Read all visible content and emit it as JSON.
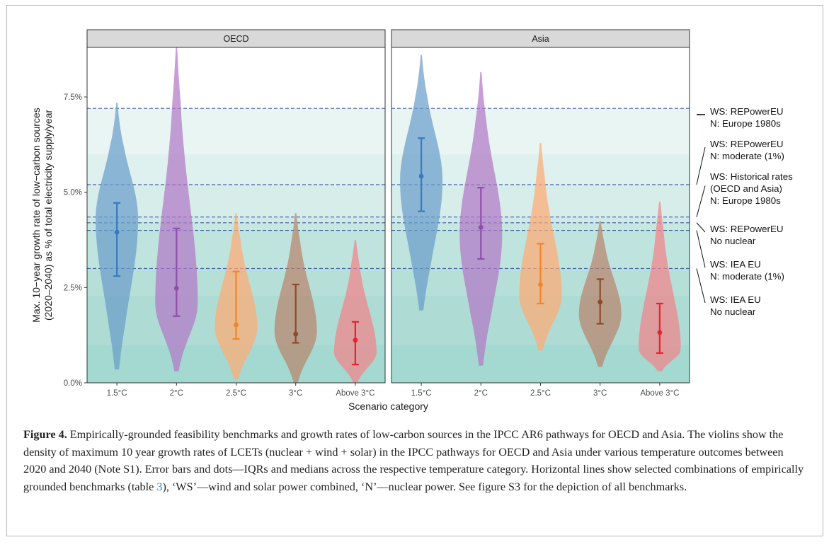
{
  "chart_data": {
    "type": "violin",
    "ylabel": "Max. 10−year growth rate of low−carbon sources",
    "ylabel2": "(2020–2040) as % of total electricity supply/year",
    "xlabel": "Scenario category",
    "categories": [
      "1.5°C",
      "2°C",
      "2.5°C",
      "3°C",
      "Above 3°C"
    ],
    "ylim": [
      0,
      8.8
    ],
    "yticks": [
      0,
      2.5,
      5.0,
      7.5
    ],
    "ytick_labels": [
      "0.0%",
      "2.5%",
      "5.0%",
      "7.5%"
    ],
    "category_colors": [
      "#3a7bbf",
      "#8e4ea8",
      "#f2852a",
      "#8b4a2a",
      "#e8222a"
    ],
    "fill_colors": [
      "#6b9ecb",
      "#b179c6",
      "#ffab73",
      "#b9856e",
      "#f2838a"
    ],
    "panels": [
      {
        "name": "OECD",
        "series": [
          {
            "category": "1.5°C",
            "median": 3.95,
            "q1": 2.8,
            "q3": 4.72,
            "min": 0.35,
            "max": 7.35,
            "mode": 4.3
          },
          {
            "category": "2°C",
            "median": 2.48,
            "q1": 1.75,
            "q3": 4.05,
            "min": 0.3,
            "max": 8.8,
            "mode": 2.1
          },
          {
            "category": "2.5°C",
            "median": 1.52,
            "q1": 1.15,
            "q3": 2.92,
            "min": 0.1,
            "max": 4.45,
            "mode": 1.45
          },
          {
            "category": "3°C",
            "median": 1.28,
            "q1": 1.05,
            "q3": 2.58,
            "min": 0.0,
            "max": 4.45,
            "mode": 1.35
          },
          {
            "category": "Above 3°C",
            "median": 1.12,
            "q1": 0.48,
            "q3": 1.6,
            "min": 0.0,
            "max": 3.75,
            "mode": 0.8
          }
        ]
      },
      {
        "name": "Asia",
        "series": [
          {
            "category": "1.5°C",
            "median": 5.42,
            "q1": 4.5,
            "q3": 6.42,
            "min": 1.9,
            "max": 8.6,
            "mode": 5.3
          },
          {
            "category": "2°C",
            "median": 4.08,
            "q1": 3.25,
            "q3": 5.12,
            "min": 0.45,
            "max": 8.15,
            "mode": 3.9
          },
          {
            "category": "2.5°C",
            "median": 2.58,
            "q1": 2.08,
            "q3": 3.65,
            "min": 0.85,
            "max": 6.3,
            "mode": 2.3
          },
          {
            "category": "3°C",
            "median": 2.12,
            "q1": 1.55,
            "q3": 2.72,
            "min": 0.42,
            "max": 4.25,
            "mode": 1.8
          },
          {
            "category": "Above 3°C",
            "median": 1.32,
            "q1": 0.78,
            "q3": 2.08,
            "min": 0.3,
            "max": 4.75,
            "mode": 0.85
          }
        ]
      }
    ],
    "benchmark_lines": [
      {
        "value": 7.2,
        "label_lines": [
          "WS: REPowerEU",
          "N: Europe 1980s"
        ]
      },
      {
        "value": 5.2,
        "label_lines": [
          "WS: REPowerEU",
          "N: moderate (1%)"
        ]
      },
      {
        "value": 4.35,
        "label_lines": [
          "WS: Historical rates",
          "(OECD and Asia)",
          "N: Europe 1980s"
        ]
      },
      {
        "value": 4.2,
        "label_lines": [
          "WS: REPowerEU",
          "No nuclear"
        ]
      },
      {
        "value": 4.0,
        "label_lines": [
          "WS: IEA EU",
          "N: moderate (1%)"
        ]
      },
      {
        "value": 3.0,
        "label_lines": [
          "WS: IEA EU",
          "No nuclear"
        ]
      }
    ],
    "background_bands": [
      {
        "from": 0,
        "to": 1.0,
        "color": "#a3d9d0"
      },
      {
        "from": 1.0,
        "to": 2.3,
        "color": "#aedcd4"
      },
      {
        "from": 2.3,
        "to": 3.0,
        "color": "#b6dfd8"
      },
      {
        "from": 3.0,
        "to": 4.0,
        "color": "#bfe3dd"
      },
      {
        "from": 4.0,
        "to": 4.2,
        "color": "#c7e7e1"
      },
      {
        "from": 4.2,
        "to": 4.35,
        "color": "#cfeae6"
      },
      {
        "from": 4.35,
        "to": 5.2,
        "color": "#d6ede9"
      },
      {
        "from": 5.2,
        "to": 6.0,
        "color": "#dff1ee"
      },
      {
        "from": 6.0,
        "to": 7.2,
        "color": "#e8f5f3"
      },
      {
        "from": 7.2,
        "to": 8.8,
        "color": "#ffffff"
      }
    ],
    "line_color": "#3b5ba8",
    "strip_color": "#d9d9d9"
  },
  "caption": {
    "label": "Figure 4.",
    "text_before_ref": " Empirically-grounded feasibility benchmarks and growth rates of low-carbon sources in the IPCC AR6 pathways for OECD and Asia. The violins show the density of maximum 10 year growth rates of LCETs (nuclear + wind + solar) in the IPCC pathways for OECD and Asia under various temperature outcomes between 2020 and 2040 (Note S1). Error bars and dots—IQRs and medians across the respective temperature category. Horizontal lines show selected combinations of empirically grounded benchmarks (table ",
    "ref": "3",
    "text_after_ref": "), ‘WS’—wind and solar power combined, ‘N’—nuclear power. See figure S3 for the depiction of all benchmarks."
  }
}
